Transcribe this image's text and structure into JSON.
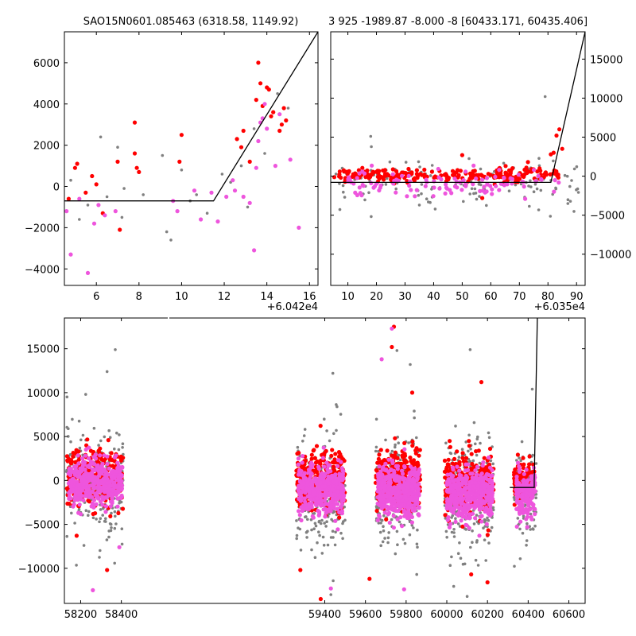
{
  "titles": {
    "top_left": "SAO15N0601.085463 (6318.58, 1149.92)",
    "top_right": "3 925 -1989.87 -8.000 -8 [60433.171, 60435.406]"
  },
  "colors": {
    "gray": "#808080",
    "red": "#ff0000",
    "magenta": "#ee55dd",
    "model": "#000000"
  },
  "chart_data": [
    {
      "id": "top-left",
      "type": "scatter",
      "title": "SAO15N0601.085463 (6318.58, 1149.92)",
      "xlim": [
        4.5,
        16.4
      ],
      "ylim": [
        -4800,
        7500
      ],
      "x_offset_label": "+6.042e4",
      "xticks": [
        6,
        8,
        10,
        12,
        14,
        16
      ],
      "yticks": [
        -4000,
        -2000,
        0,
        2000,
        4000,
        6000
      ],
      "ytick_side": "left",
      "grid": false,
      "model_line": {
        "x": [
          4.5,
          11.5,
          16.4
        ],
        "y": [
          -700,
          -700,
          7500
        ]
      },
      "series": [
        {
          "color": "gray",
          "points": [
            [
              4.8,
              300
            ],
            [
              5.2,
              -1600
            ],
            [
              5.6,
              -900
            ],
            [
              6.2,
              2400
            ],
            [
              6.5,
              -500
            ],
            [
              7.0,
              1900
            ],
            [
              7.2,
              -1500
            ],
            [
              7.3,
              -100
            ],
            [
              8.2,
              -400
            ],
            [
              9.1,
              1500
            ],
            [
              9.3,
              -2200
            ],
            [
              9.5,
              -2600
            ],
            [
              10.0,
              800
            ],
            [
              10.4,
              -700
            ],
            [
              10.7,
              -400
            ],
            [
              11.2,
              -1300
            ],
            [
              11.9,
              600
            ],
            [
              12.3,
              200
            ],
            [
              12.8,
              1000
            ],
            [
              13.1,
              -1000
            ],
            [
              13.4,
              2800
            ],
            [
              13.9,
              1600
            ],
            [
              14.5,
              4500
            ],
            [
              15.0,
              3800
            ]
          ]
        },
        {
          "color": "red",
          "points": [
            [
              4.7,
              -600
            ],
            [
              5.0,
              900
            ],
            [
              5.1,
              1100
            ],
            [
              5.5,
              -300
            ],
            [
              5.8,
              500
            ],
            [
              6.0,
              100
            ],
            [
              6.3,
              -1300
            ],
            [
              7.0,
              1200
            ],
            [
              7.1,
              -2100
            ],
            [
              7.8,
              1600
            ],
            [
              7.9,
              900
            ],
            [
              7.8,
              3100
            ],
            [
              8.0,
              700
            ],
            [
              9.9,
              1200
            ],
            [
              10.0,
              2500
            ],
            [
              12.6,
              2300
            ],
            [
              12.8,
              1900
            ],
            [
              12.9,
              2700
            ],
            [
              13.2,
              1200
            ],
            [
              13.5,
              4200
            ],
            [
              13.6,
              6000
            ],
            [
              13.7,
              5000
            ],
            [
              13.8,
              3900
            ],
            [
              14.0,
              4800
            ],
            [
              14.1,
              4700
            ],
            [
              14.2,
              3400
            ],
            [
              14.3,
              3600
            ],
            [
              14.6,
              2700
            ],
            [
              14.7,
              3000
            ],
            [
              14.8,
              3800
            ],
            [
              14.9,
              3200
            ]
          ]
        },
        {
          "color": "magenta",
          "points": [
            [
              4.6,
              -1200
            ],
            [
              4.8,
              -3300
            ],
            [
              5.2,
              -600
            ],
            [
              5.6,
              -4200
            ],
            [
              5.9,
              -1800
            ],
            [
              6.1,
              -900
            ],
            [
              6.4,
              -1400
            ],
            [
              6.9,
              -1200
            ],
            [
              9.6,
              -700
            ],
            [
              9.8,
              -1200
            ],
            [
              10.6,
              -200
            ],
            [
              10.9,
              -1600
            ],
            [
              11.4,
              -300
            ],
            [
              11.7,
              -1700
            ],
            [
              12.1,
              -500
            ],
            [
              12.4,
              300
            ],
            [
              12.5,
              -200
            ],
            [
              12.9,
              -500
            ],
            [
              13.2,
              -800
            ],
            [
              13.4,
              -3100
            ],
            [
              13.5,
              900
            ],
            [
              13.6,
              2200
            ],
            [
              13.7,
              3100
            ],
            [
              13.8,
              3300
            ],
            [
              13.9,
              4000
            ],
            [
              14.0,
              2800
            ],
            [
              14.4,
              1000
            ],
            [
              14.6,
              3500
            ],
            [
              15.1,
              1300
            ],
            [
              15.5,
              -2000
            ]
          ]
        }
      ]
    },
    {
      "id": "top-right",
      "type": "scatter",
      "title": "3 925 -1989.87 -8.000 -8 [60433.171, 60435.406]",
      "xlim": [
        4,
        93
      ],
      "ylim": [
        -14000,
        18500
      ],
      "x_offset_label": "+6.035e4",
      "xticks": [
        10,
        20,
        30,
        40,
        50,
        60,
        70,
        80,
        90
      ],
      "yticks": [
        -10000,
        -5000,
        0,
        5000,
        10000,
        15000
      ],
      "ytick_side": "right",
      "grid": false,
      "model_line": {
        "x": [
          4,
          81,
          93
        ],
        "y": [
          -800,
          -800,
          18500
        ]
      },
      "clusters": [
        {
          "color": "gray",
          "x_range": [
            5,
            92
          ],
          "y_mean": -800,
          "spread": 1600,
          "count": 140
        },
        {
          "color": "red",
          "x_range": [
            5,
            84
          ],
          "y_mean": 100,
          "spread": 450,
          "count": 230
        },
        {
          "color": "magenta",
          "x_range": [
            8,
            85
          ],
          "y_mean": -900,
          "spread": 800,
          "count": 110
        }
      ],
      "series": [
        {
          "color": "red",
          "points": [
            [
              82,
              3000
            ],
            [
              83,
              5200
            ],
            [
              84,
              6000
            ],
            [
              85,
              3500
            ],
            [
              73,
              1800
            ],
            [
              81,
              2800
            ],
            [
              50,
              2700
            ],
            [
              57,
              -2800
            ]
          ]
        },
        {
          "color": "gray",
          "points": [
            [
              79,
              10200
            ],
            [
              18,
              5100
            ],
            [
              56,
              -2600
            ]
          ]
        }
      ]
    },
    {
      "id": "bottom",
      "type": "scatter",
      "xlim": [
        58120,
        60680
      ],
      "ylim": [
        -14000,
        18500
      ],
      "xticks": [
        58200,
        58400,
        59400,
        59600,
        59800,
        60000,
        60200,
        60400,
        60600
      ],
      "yticks": [
        -10000,
        -5000,
        0,
        5000,
        10000,
        15000
      ],
      "ytick_side": "left",
      "grid": false,
      "axis_break": true,
      "model_line": {
        "x": [
          60310,
          60430,
          60430,
          60445
        ],
        "y": [
          -800,
          -800,
          0,
          18500
        ]
      },
      "clusters": [
        {
          "color": "gray",
          "x_range": [
            58130,
            58410
          ],
          "y_mean": -300,
          "spread": 3200,
          "count": 230
        },
        {
          "color": "gray",
          "x_range": [
            59260,
            59500
          ],
          "y_mean": -1500,
          "spread": 3500,
          "count": 230
        },
        {
          "color": "gray",
          "x_range": [
            59650,
            59870
          ],
          "y_mean": -1000,
          "spread": 3300,
          "count": 230
        },
        {
          "color": "gray",
          "x_range": [
            59990,
            60230
          ],
          "y_mean": -1800,
          "spread": 3400,
          "count": 230
        },
        {
          "color": "gray",
          "x_range": [
            60330,
            60440
          ],
          "y_mean": -1500,
          "spread": 2700,
          "count": 110
        },
        {
          "color": "red",
          "x_range": [
            58130,
            58410
          ],
          "y_mean": 300,
          "spread": 1600,
          "count": 320
        },
        {
          "color": "red",
          "x_range": [
            59260,
            59500
          ],
          "y_mean": -200,
          "spread": 1700,
          "count": 330
        },
        {
          "color": "red",
          "x_range": [
            59650,
            59870
          ],
          "y_mean": 100,
          "spread": 1700,
          "count": 330
        },
        {
          "color": "red",
          "x_range": [
            59990,
            60230
          ],
          "y_mean": -200,
          "spread": 1700,
          "count": 330
        },
        {
          "color": "red",
          "x_range": [
            60330,
            60430
          ],
          "y_mean": -100,
          "spread": 1200,
          "count": 140
        },
        {
          "color": "magenta",
          "x_range": [
            58140,
            58405
          ],
          "y_mean": -300,
          "spread": 1300,
          "count": 420
        },
        {
          "color": "magenta",
          "x_range": [
            59270,
            59495
          ],
          "y_mean": -1000,
          "spread": 1400,
          "count": 420
        },
        {
          "color": "magenta",
          "x_range": [
            59660,
            59865
          ],
          "y_mean": -1100,
          "spread": 1500,
          "count": 420
        },
        {
          "color": "magenta",
          "x_range": [
            60000,
            60225
          ],
          "y_mean": -1500,
          "spread": 1500,
          "count": 420
        },
        {
          "color": "magenta",
          "x_range": [
            60340,
            60435
          ],
          "y_mean": -1500,
          "spread": 1400,
          "count": 160
        }
      ],
      "series": [
        {
          "color": "gray",
          "points": [
            [
              58370,
              14900
            ],
            [
              58330,
              12400
            ],
            [
              59440,
              12200
            ],
            [
              59755,
              14800
            ],
            [
              59820,
              13200
            ],
            [
              60115,
              14900
            ],
            [
              60420,
              10400
            ],
            [
              60100,
              -13200
            ],
            [
              59430,
              -13000
            ]
          ]
        },
        {
          "color": "red",
          "points": [
            [
              59740,
              17500
            ],
            [
              59830,
              10000
            ],
            [
              59730,
              15200
            ],
            [
              60170,
              11200
            ],
            [
              59380,
              -13500
            ],
            [
              58330,
              -10200
            ],
            [
              59280,
              -10200
            ],
            [
              59620,
              -11200
            ],
            [
              60200,
              -11600
            ],
            [
              58180,
              -6300
            ],
            [
              60120,
              -10700
            ]
          ]
        },
        {
          "color": "magenta",
          "points": [
            [
              59730,
              17300
            ],
            [
              58260,
              -12500
            ],
            [
              58390,
              -7600
            ],
            [
              59680,
              13800
            ],
            [
              59430,
              -12300
            ],
            [
              59790,
              -12400
            ]
          ]
        }
      ]
    }
  ]
}
